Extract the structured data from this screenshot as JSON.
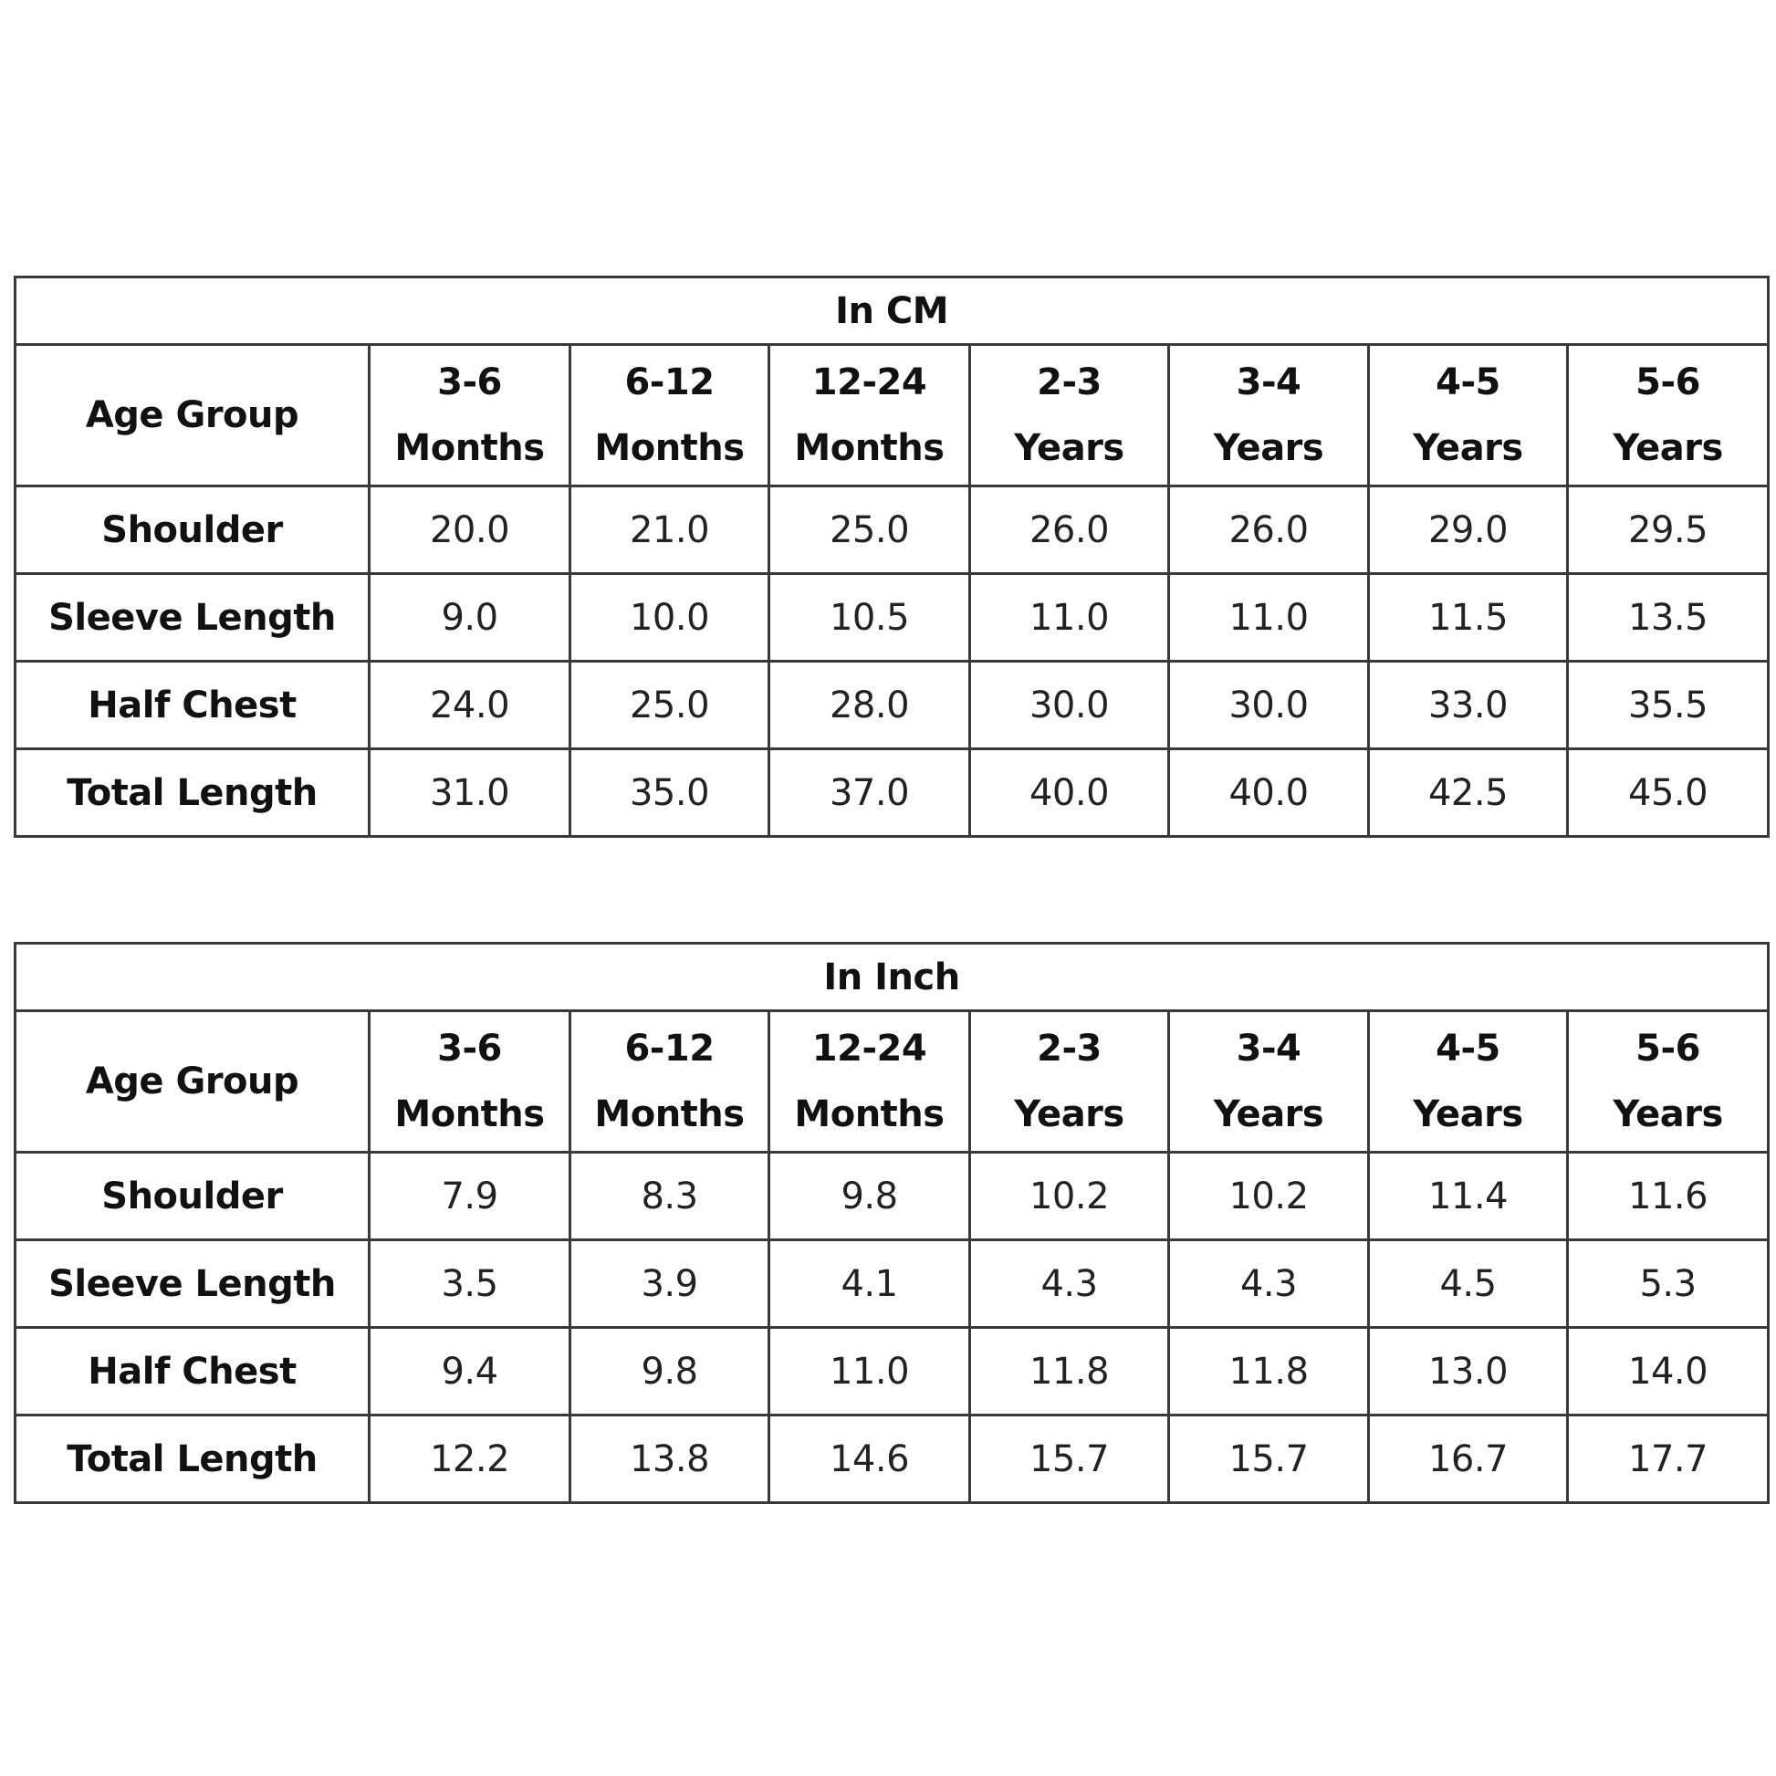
{
  "columns": [
    "Age Group",
    "3-6 Months",
    "6-12 Months",
    "12-24 Months",
    "2-3 Years",
    "3-4 Years",
    "4-5 Years",
    "5-6 Years"
  ],
  "column_lines": [
    [
      "3-6",
      "Months"
    ],
    [
      "6-12",
      "Months"
    ],
    [
      "12-24",
      "Months"
    ],
    [
      "2-3",
      "Years"
    ],
    [
      "3-4",
      "Years"
    ],
    [
      "4-5",
      "Years"
    ],
    [
      "5-6",
      "Years"
    ]
  ],
  "tables": [
    {
      "title": "In CM",
      "rows": [
        {
          "label": "Shoulder",
          "values": [
            "20.0",
            "21.0",
            "25.0",
            "26.0",
            "26.0",
            "29.0",
            "29.5"
          ]
        },
        {
          "label": "Sleeve Length",
          "values": [
            "9.0",
            "10.0",
            "10.5",
            "11.0",
            "11.0",
            "11.5",
            "13.5"
          ]
        },
        {
          "label": "Half Chest",
          "values": [
            "24.0",
            "25.0",
            "28.0",
            "30.0",
            "30.0",
            "33.0",
            "35.5"
          ]
        },
        {
          "label": "Total Length",
          "values": [
            "31.0",
            "35.0",
            "37.0",
            "40.0",
            "40.0",
            "42.5",
            "45.0"
          ]
        }
      ]
    },
    {
      "title": "In Inch",
      "rows": [
        {
          "label": "Shoulder",
          "values": [
            "7.9",
            "8.3",
            "9.8",
            "10.2",
            "10.2",
            "11.4",
            "11.6"
          ]
        },
        {
          "label": "Sleeve Length",
          "values": [
            "3.5",
            "3.9",
            "4.1",
            "4.3",
            "4.3",
            "4.5",
            "5.3"
          ]
        },
        {
          "label": "Half Chest",
          "values": [
            "9.4",
            "9.8",
            "11.0",
            "11.8",
            "11.8",
            "13.0",
            "14.0"
          ]
        },
        {
          "label": "Total Length",
          "values": [
            "12.2",
            "13.8",
            "14.6",
            "15.7",
            "15.7",
            "16.7",
            "17.7"
          ]
        }
      ]
    }
  ]
}
